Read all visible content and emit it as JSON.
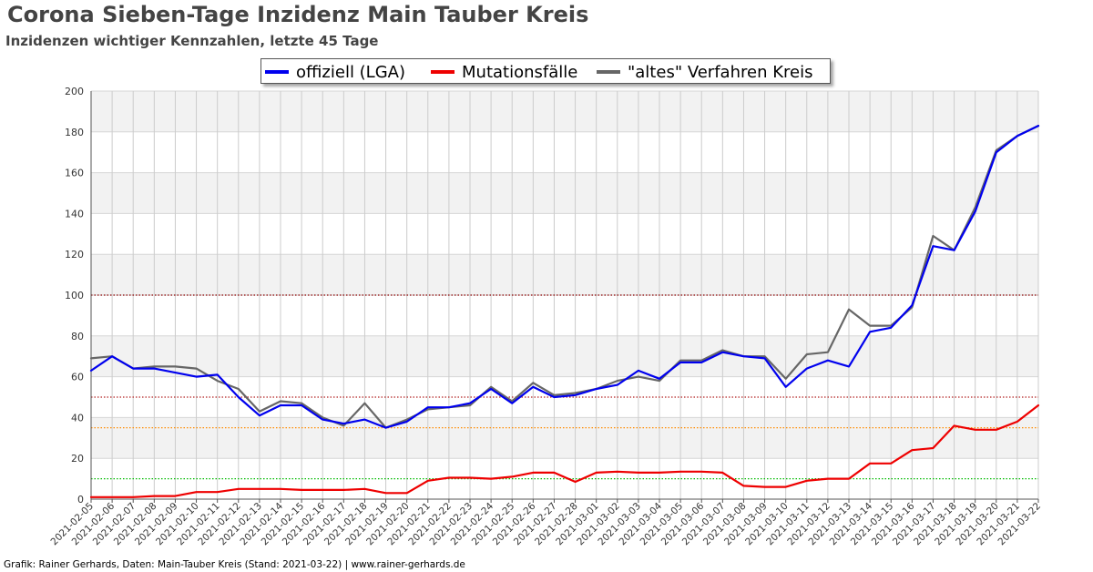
{
  "title": "Corona Sieben-Tage Inzidenz Main Tauber Kreis",
  "subtitle": "Inzidenzen wichtiger Kennzahlen, letzte 45 Tage",
  "footer": "Grafik: Rainer Gerhards, Daten: Main-Tauber Kreis (Stand: 2021-03-22) | www.rainer-gerhards.de",
  "chart_data": {
    "type": "line",
    "categories": [
      "2021-02-05",
      "2021-02-06",
      "2021-02-07",
      "2021-02-08",
      "2021-02-09",
      "2021-02-10",
      "2021-02-11",
      "2021-02-12",
      "2021-02-13",
      "2021-02-14",
      "2021-02-15",
      "2021-02-16",
      "2021-02-17",
      "2021-02-18",
      "2021-02-19",
      "2021-02-20",
      "2021-02-21",
      "2021-02-22",
      "2021-02-23",
      "2021-02-24",
      "2021-02-25",
      "2021-02-26",
      "2021-02-27",
      "2021-02-28",
      "2021-03-01",
      "2021-03-02",
      "2021-03-03",
      "2021-03-04",
      "2021-03-05",
      "2021-03-06",
      "2021-03-07",
      "2021-03-08",
      "2021-03-09",
      "2021-03-10",
      "2021-03-11",
      "2021-03-12",
      "2021-03-13",
      "2021-03-14",
      "2021-03-15",
      "2021-03-16",
      "2021-03-17",
      "2021-03-18",
      "2021-03-19",
      "2021-03-20",
      "2021-03-21",
      "2021-03-22"
    ],
    "series": [
      {
        "name": "offiziell (LGA)",
        "color": "#0000ee",
        "values": [
          63,
          70,
          64,
          64,
          62,
          60,
          61,
          50,
          41,
          46,
          46,
          39,
          37,
          39,
          35,
          38,
          45,
          45,
          47,
          54,
          47,
          55,
          50,
          51,
          54,
          56,
          63,
          59,
          67,
          67,
          72,
          70,
          69,
          55,
          64,
          68,
          65,
          82,
          84,
          95,
          124,
          122,
          141,
          170,
          178,
          183
        ]
      },
      {
        "name": "Mutationsfälle",
        "color": "#ee0000",
        "values": [
          1,
          1,
          1,
          1.5,
          1.5,
          3.5,
          3.5,
          5,
          5,
          5,
          4.5,
          4.5,
          4.5,
          5,
          3,
          3,
          9,
          10.5,
          10.5,
          10,
          11,
          13,
          13,
          8.5,
          13,
          13.5,
          13,
          13,
          13.5,
          13.5,
          13,
          6.5,
          6,
          6,
          9,
          10,
          10,
          17.5,
          17.5,
          24,
          25,
          36,
          34,
          34,
          38,
          46
        ]
      },
      {
        "name": "\"altes\" Verfahren Kreis",
        "color": "#666666",
        "values": [
          69,
          70,
          64,
          65,
          65,
          64,
          58,
          54,
          43,
          48,
          47,
          40,
          36,
          47,
          35,
          39,
          44,
          45,
          46,
          55,
          48,
          57,
          51,
          52,
          54,
          58,
          60,
          58,
          68,
          68,
          73,
          70,
          70,
          59,
          71,
          72,
          93,
          85,
          85,
          94,
          129,
          122,
          143,
          171,
          178,
          183
        ]
      }
    ],
    "ylim": [
      0,
      200
    ],
    "yticks": [
      0,
      20,
      40,
      60,
      80,
      100,
      120,
      140,
      160,
      180,
      200
    ],
    "reference_lines": [
      {
        "value": 100,
        "color": "#8b0000"
      },
      {
        "value": 50,
        "color": "#b22222"
      },
      {
        "value": 35,
        "color": "#ff8c00"
      },
      {
        "value": 10,
        "color": "#00bb00"
      }
    ],
    "grid": true,
    "legend_position": "top-center"
  }
}
